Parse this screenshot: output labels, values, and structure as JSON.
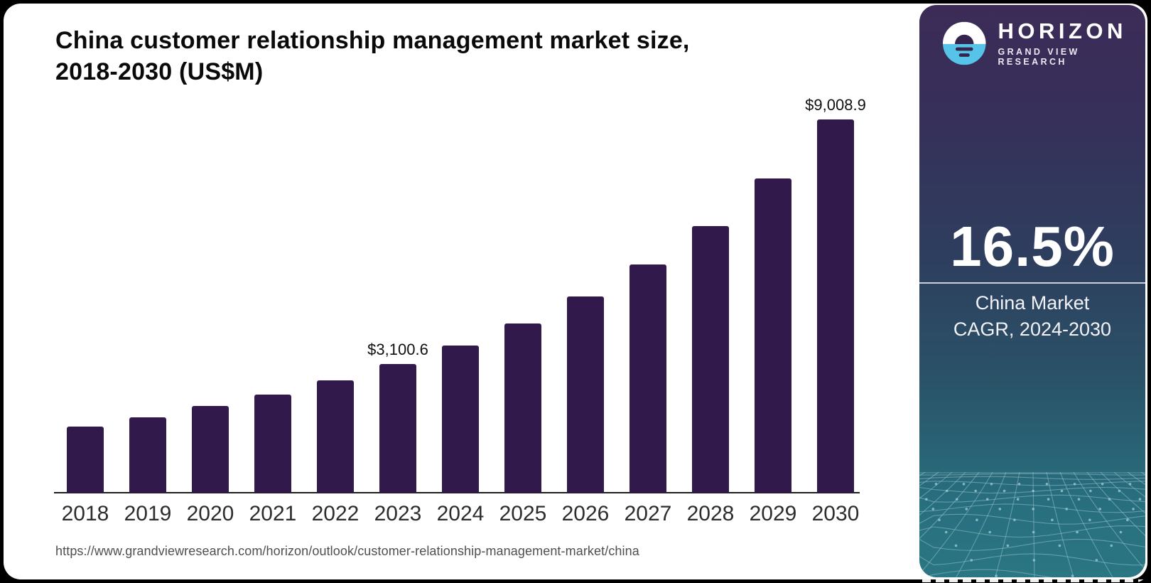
{
  "title_line1": "China customer relationship management market size,",
  "title_line2": "2018-2030 (US$M)",
  "source_url": "https://www.grandviewresearch.com/horizon/outlook/customer-relationship-management-market/china",
  "chart_data": {
    "type": "bar",
    "title": "China customer relationship management market size, 2018-2030 (US$M)",
    "unit": "US$M",
    "categories": [
      "2018",
      "2019",
      "2020",
      "2021",
      "2022",
      "2023",
      "2024",
      "2025",
      "2026",
      "2027",
      "2028",
      "2029",
      "2030"
    ],
    "values": [
      1600,
      1823,
      2098,
      2374,
      2718,
      3100.6,
      3560,
      4076,
      4730,
      5504,
      6433,
      7585,
      9008.9
    ],
    "value_labels": {
      "2023": "$3,100.6",
      "2030": "$9,008.9"
    },
    "ylim": [
      0,
      9008.9
    ],
    "bar_color": "#31194B",
    "grid": false,
    "legend": false
  },
  "sidebar": {
    "brand_name": "HORIZON",
    "brand_subtitle": "GRAND VIEW RESEARCH",
    "stat_value": "16.5%",
    "caption_line1": "China Market",
    "caption_line2": "CAGR, 2024-2030",
    "colors": {
      "logo_blue": "#56C3E9",
      "panel_top": "#3C2B57",
      "panel_bottom": "#2B7683",
      "mesh_line": "#9CC8D2"
    }
  }
}
